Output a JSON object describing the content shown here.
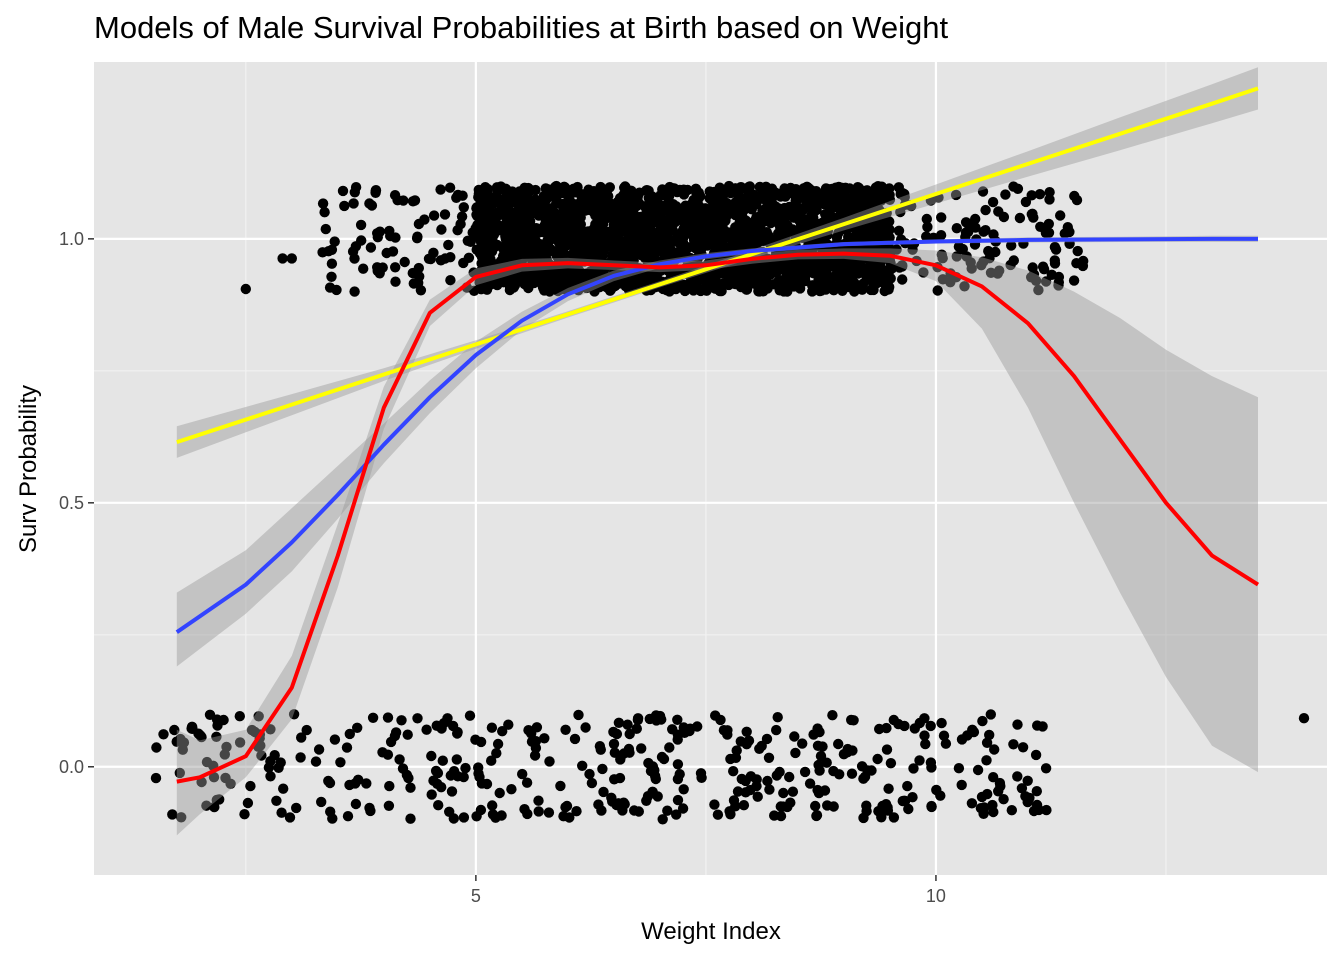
{
  "chart_data": {
    "type": "scatter",
    "title": "Models of Male Survival Probabilities at Birth based on Weight",
    "xlabel": "Weight Index",
    "ylabel": "Surv Probability",
    "xlim": [
      0.85,
      14.25
    ],
    "ylim": [
      -0.205,
      1.335
    ],
    "x_ticks": [
      5,
      10
    ],
    "x_minor_ticks": [
      2.5,
      7.5,
      12.5
    ],
    "y_ticks": [
      0.0,
      0.5,
      1.0
    ],
    "y_minor_ticks": [
      0.25,
      0.75
    ],
    "grid": true,
    "background": "#e5e5e5",
    "point_color": "#000000",
    "jitter": {
      "x": 0.3,
      "y": 0.1
    },
    "point_groups": [
      {
        "outcome": 1,
        "count": 2400,
        "x_min": 3.3,
        "x_max": 11.6,
        "x_dense_min": 5.0,
        "x_dense_max": 9.5,
        "y": 1
      },
      {
        "outcome": 0,
        "count": 420,
        "x_min": 1.5,
        "x_max": 11.2,
        "y": 0
      }
    ],
    "outlier_points": [
      {
        "x": 2.5,
        "y": 0.905
      },
      {
        "x": 2.9,
        "y": 0.963
      },
      {
        "x": 3.0,
        "y": 0.963
      },
      {
        "x": 11.6,
        "y": 0.958
      },
      {
        "x": 11.4,
        "y": 1.01
      },
      {
        "x": 14.0,
        "y": 0.092
      },
      {
        "x": 11.1,
        "y": 0.078
      },
      {
        "x": 11.2,
        "y": -0.082
      },
      {
        "x": 10.7,
        "y": -0.037
      }
    ],
    "series": [
      {
        "name": "",
        "color": "#ffff00",
        "band_color": "#999999",
        "x": [
          1.75,
          3.0,
          4.0,
          5.0,
          6.0,
          7.0,
          8.0,
          9.0,
          10.0,
          11.0,
          12.0,
          13.0,
          13.5
        ],
        "y": [
          0.615,
          0.686,
          0.743,
          0.8,
          0.857,
          0.914,
          0.971,
          1.028,
          1.085,
          1.142,
          1.199,
          1.256,
          1.285
        ],
        "lower": [
          0.585,
          0.666,
          0.731,
          0.792,
          0.851,
          0.908,
          0.963,
          1.016,
          1.067,
          1.118,
          1.168,
          1.219,
          1.245
        ],
        "upper": [
          0.645,
          0.706,
          0.755,
          0.808,
          0.863,
          0.92,
          0.979,
          1.04,
          1.103,
          1.166,
          1.23,
          1.293,
          1.325
        ]
      },
      {
        "name": "",
        "color": "#3344ff",
        "band_color": "#999999",
        "x": [
          1.75,
          2.5,
          3.0,
          3.5,
          4.0,
          4.5,
          5.0,
          5.5,
          6.0,
          6.5,
          7.0,
          7.5,
          8.0,
          9.0,
          10.0,
          11.0,
          12.0,
          13.0,
          13.5
        ],
        "y": [
          0.255,
          0.345,
          0.425,
          0.515,
          0.61,
          0.7,
          0.78,
          0.845,
          0.895,
          0.93,
          0.952,
          0.967,
          0.977,
          0.99,
          0.995,
          0.998,
          0.999,
          1.0,
          1.0
        ],
        "lower": [
          0.19,
          0.29,
          0.37,
          0.47,
          0.575,
          0.67,
          0.755,
          0.828,
          0.882,
          0.92,
          0.945,
          0.961,
          0.972,
          0.986,
          0.991,
          0.993,
          0.994,
          0.994,
          0.994
        ],
        "upper": [
          0.33,
          0.41,
          0.49,
          0.57,
          0.65,
          0.732,
          0.805,
          0.862,
          0.907,
          0.94,
          0.959,
          0.973,
          0.982,
          0.994,
          0.999,
          1.003,
          1.004,
          1.006,
          1.006
        ]
      },
      {
        "name": "",
        "color": "#ff0000",
        "band_color": "#999999",
        "x": [
          1.75,
          2.0,
          2.5,
          3.0,
          3.5,
          4.0,
          4.5,
          5.0,
          5.5,
          6.0,
          6.5,
          7.0,
          7.5,
          8.0,
          8.5,
          9.0,
          9.5,
          10.0,
          10.5,
          11.0,
          11.5,
          12.0,
          12.5,
          13.0,
          13.5
        ],
        "y": [
          -0.028,
          -0.02,
          0.02,
          0.15,
          0.4,
          0.68,
          0.86,
          0.928,
          0.95,
          0.954,
          0.95,
          0.946,
          0.95,
          0.962,
          0.97,
          0.972,
          0.968,
          0.95,
          0.91,
          0.84,
          0.74,
          0.62,
          0.5,
          0.4,
          0.345
        ],
        "lower": [
          -0.13,
          -0.09,
          -0.02,
          0.09,
          0.34,
          0.64,
          0.835,
          0.912,
          0.938,
          0.944,
          0.941,
          0.937,
          0.941,
          0.953,
          0.961,
          0.962,
          0.954,
          0.92,
          0.83,
          0.68,
          0.5,
          0.33,
          0.17,
          0.04,
          -0.01
        ],
        "upper": [
          0.07,
          0.05,
          0.07,
          0.21,
          0.46,
          0.72,
          0.885,
          0.944,
          0.962,
          0.964,
          0.959,
          0.955,
          0.959,
          0.971,
          0.979,
          0.982,
          0.982,
          0.978,
          0.965,
          0.94,
          0.9,
          0.85,
          0.79,
          0.74,
          0.7
        ]
      }
    ]
  }
}
